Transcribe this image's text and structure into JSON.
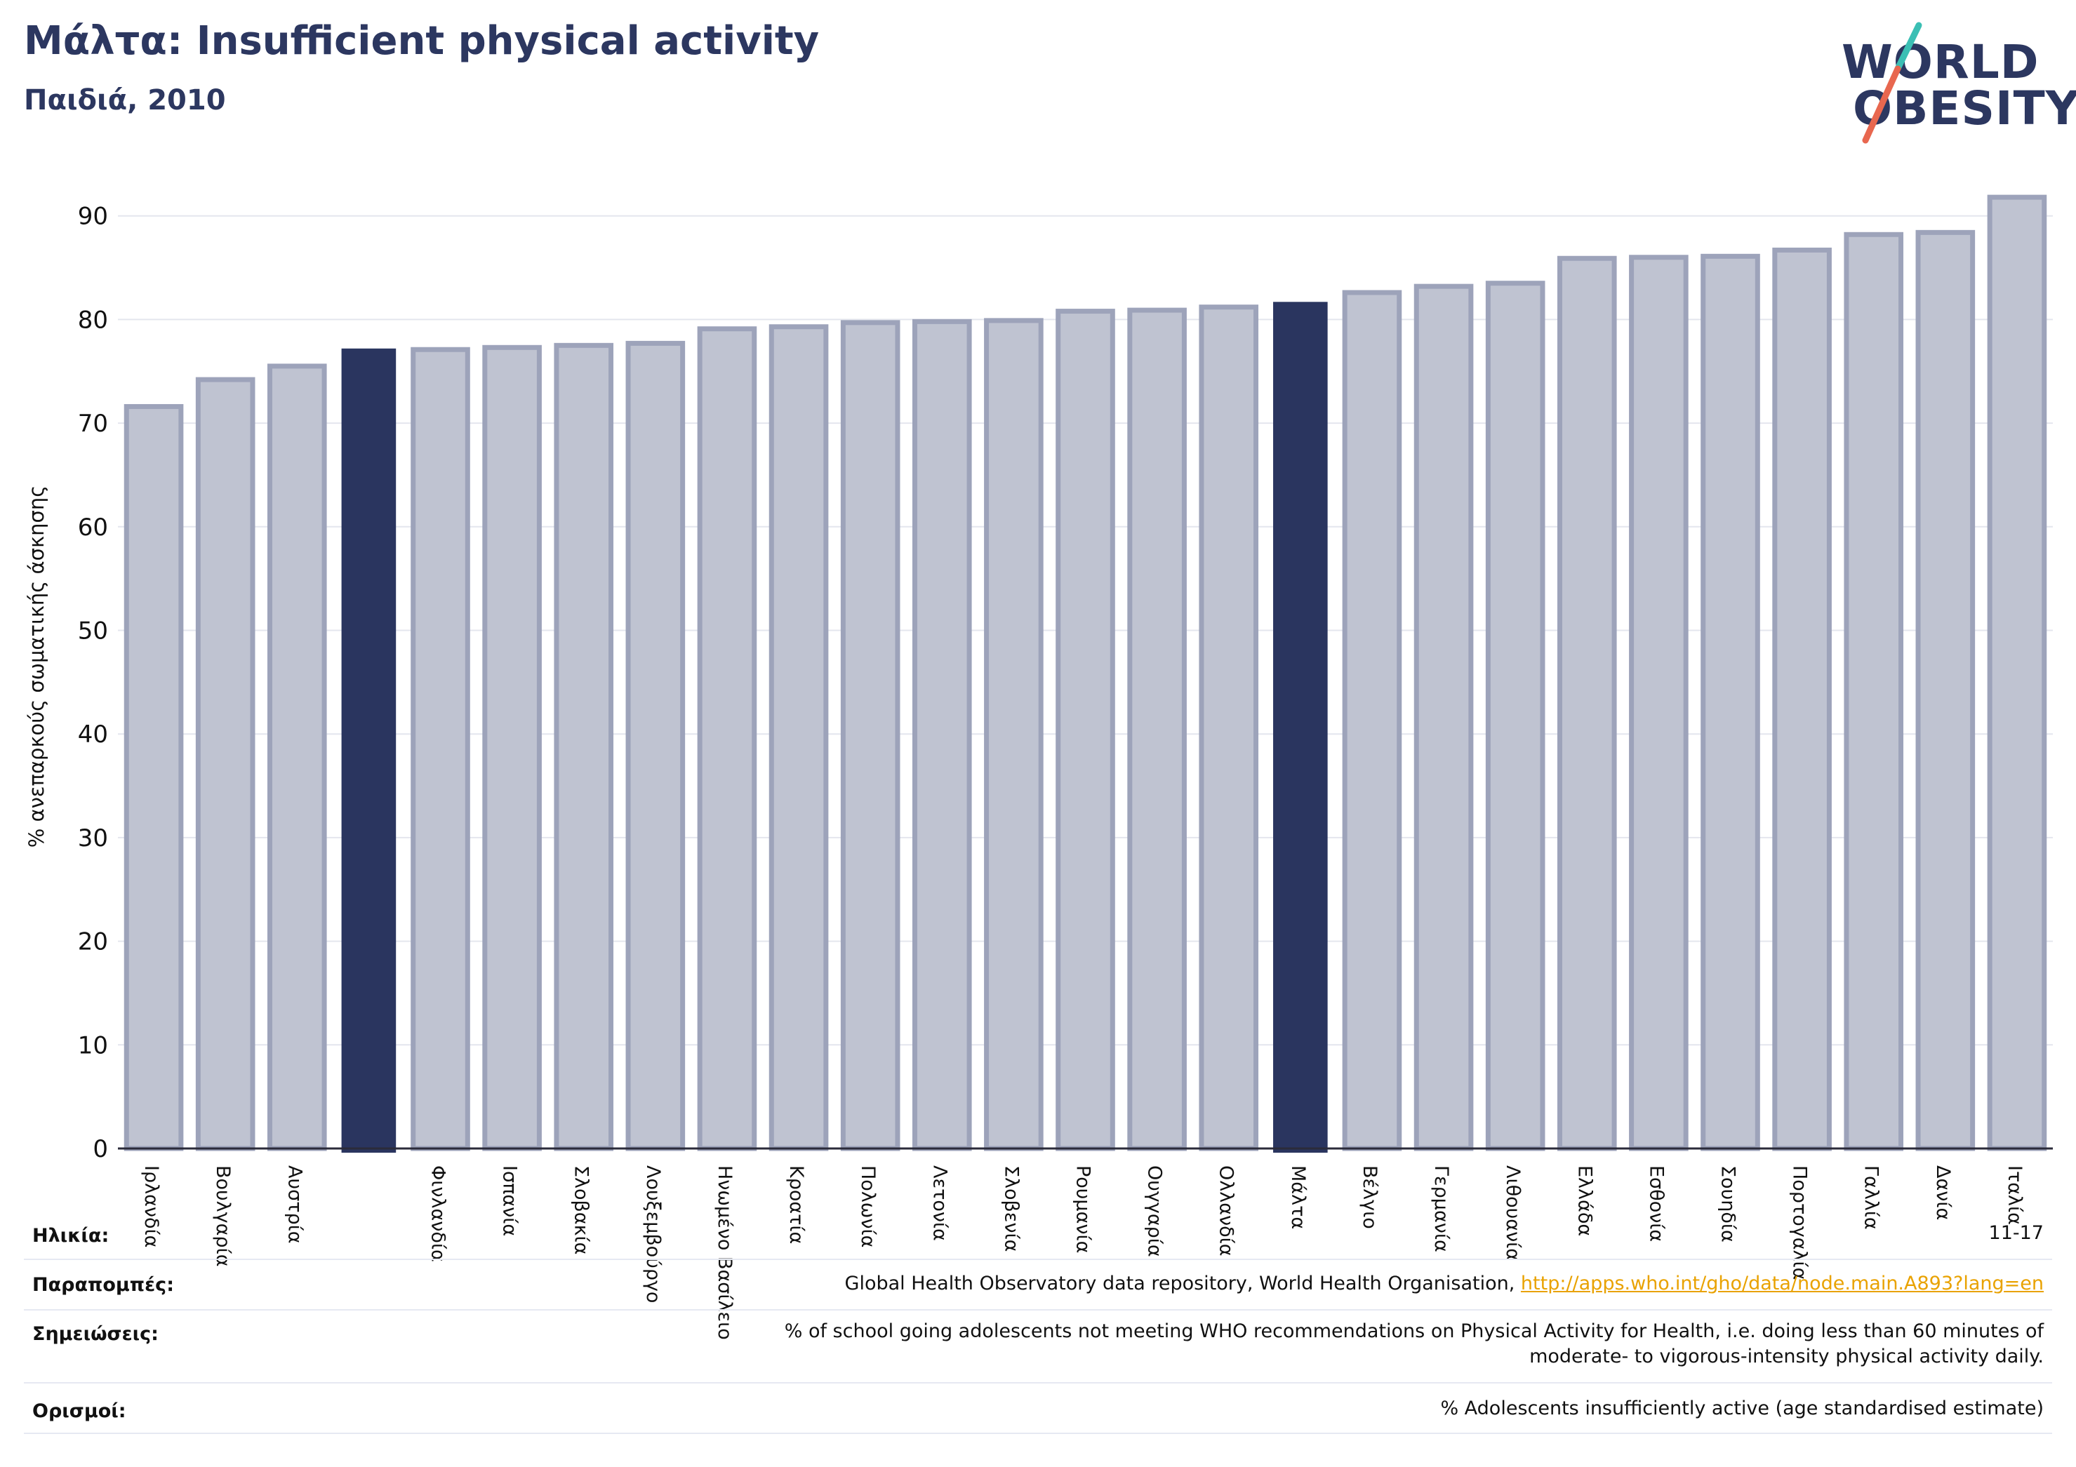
{
  "title": "Μάλτα: Insufficient physical activity",
  "subtitle": "Παιδιά, 2010",
  "logo": {
    "line1": "WORLD",
    "line2": "OBESITY"
  },
  "colors": {
    "bar_default": "#bfc3d1",
    "bar_border": "#9da3ba",
    "bar_highlight": "#2a355f",
    "title": "#2c3760",
    "link": "#e9a200",
    "logo_slash_top": "#3bbfb4",
    "logo_slash_bottom": "#e8674f"
  },
  "chart_data": {
    "type": "bar",
    "ylabel": "% ανεπαρκούς σωματικής άσκησης",
    "ylim": [
      0,
      92
    ],
    "yticks": [
      0,
      10,
      20,
      30,
      40,
      50,
      60,
      70,
      80,
      90
    ],
    "grid": true,
    "categories": [
      "Ιρλανδία",
      "Βουλγαρία",
      "Αυστρία",
      "",
      "Φινλανδία",
      "Ισπανία",
      "Σλοβακία",
      "Λουξεμβούργο",
      "Ηνωμένο Βασίλειο",
      "Κροατία",
      "Πολωνία",
      "Λετονία",
      "Σλοβενία",
      "Ρουμανία",
      "Ουγγαρία",
      "Ολλανδία",
      "Μάλτα",
      "Βέλγιο",
      "Γερμανία",
      "Λιθουανία",
      "Ελλάδα",
      "Εσθονία",
      "Σουηδία",
      "Πορτογαλία",
      "Γαλλία",
      "Δανία",
      "Ιταλία"
    ],
    "values": [
      71.6,
      74.2,
      75.5,
      77.2,
      77.1,
      77.3,
      77.5,
      77.7,
      79.1,
      79.3,
      79.7,
      79.8,
      79.9,
      80.8,
      80.9,
      81.2,
      81.7,
      82.6,
      83.2,
      83.5,
      85.9,
      86.0,
      86.1,
      86.7,
      88.2,
      88.4,
      91.8
    ],
    "highlighted": [
      3,
      16
    ]
  },
  "metadata": [
    {
      "label": "Ηλικία:",
      "value": "11-17"
    },
    {
      "label": "Παραπομπές:",
      "value": "Global Health Observatory data repository, World Health Organisation, ",
      "link": "http://apps.who.int/gho/data/node.main.A893?lang=en"
    },
    {
      "label": "Σημειώσεις:",
      "value_line1": "% of school going adolescents not meeting WHO recommendations on Physical Activity for Health, i.e. doing less than 60 minutes of",
      "value_line2": "moderate- to vigorous-intensity physical activity daily."
    },
    {
      "label": "Ορισμοί:",
      "value": "% Adolescents insufficiently active (age standardised estimate)"
    }
  ]
}
